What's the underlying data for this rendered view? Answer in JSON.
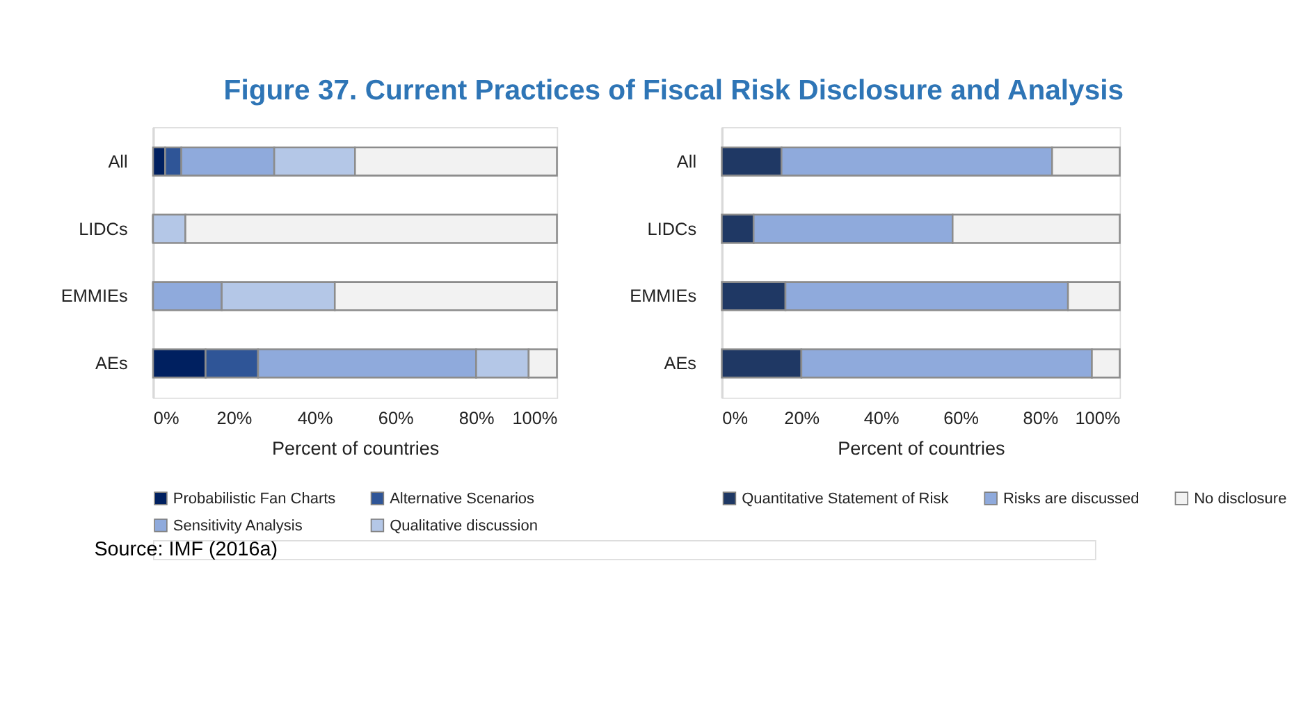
{
  "chart_data": [
    {
      "type": "bar",
      "title": "Figure 37. Current Practices of Fiscal Risk Disclosure and Analysis",
      "orientation": "horizontal",
      "stacked": true,
      "categories": [
        "All",
        "LIDCs",
        "EMMIEs",
        "AEs"
      ],
      "xlabel": "Percent of countries",
      "xlim": [
        0,
        100
      ],
      "xticks": [
        {
          "value": 0,
          "label": "0%"
        },
        {
          "value": 20,
          "label": "20%"
        },
        {
          "value": 40,
          "label": "40%"
        },
        {
          "value": 60,
          "label": "60%"
        },
        {
          "value": 80,
          "label": "80%"
        },
        {
          "value": 100,
          "label": "100%"
        }
      ],
      "legend": "bottom",
      "grid": false,
      "annotations": [
        "Source: IMF (2016a)"
      ],
      "series": [
        {
          "name": "Probabilistic Fan Charts",
          "color": "#002060",
          "values": [
            3,
            0,
            0,
            13
          ]
        },
        {
          "name": "Alternative Scenarios",
          "color": "#2f5597",
          "values": [
            4,
            0,
            0,
            13
          ]
        },
        {
          "name": "Sensitivity Analysis",
          "color": "#8faadc",
          "values": [
            23,
            0,
            17,
            54
          ]
        },
        {
          "name": "Qualitative discussion",
          "color": "#b4c7e7",
          "values": [
            20,
            8,
            28,
            13
          ]
        },
        {
          "color": "#f2f2f2",
          "values": [
            50,
            92,
            55,
            7
          ]
        }
      ]
    },
    {
      "type": "bar",
      "orientation": "horizontal",
      "stacked": true,
      "categories": [
        "All",
        "LIDCs",
        "EMMIEs",
        "AEs"
      ],
      "xlabel": "Percent of countries",
      "xlim": [
        0,
        100
      ],
      "xticks": [
        {
          "value": 0,
          "label": "0%"
        },
        {
          "value": 20,
          "label": "20%"
        },
        {
          "value": 40,
          "label": "40%"
        },
        {
          "value": 60,
          "label": "60%"
        },
        {
          "value": 80,
          "label": "80%"
        },
        {
          "value": 100,
          "label": "100%"
        }
      ],
      "legend": "bottom",
      "grid": false,
      "series": [
        {
          "name": "Quantitative Statement of Risk",
          "color": "#1f3864",
          "values": [
            15,
            8,
            16,
            20
          ]
        },
        {
          "name": "Risks are discussed",
          "color": "#8faadc",
          "values": [
            68,
            50,
            71,
            73
          ]
        },
        {
          "name": "No disclosure",
          "color": "#f2f2f2",
          "values": [
            17,
            42,
            13,
            7
          ]
        }
      ]
    }
  ]
}
